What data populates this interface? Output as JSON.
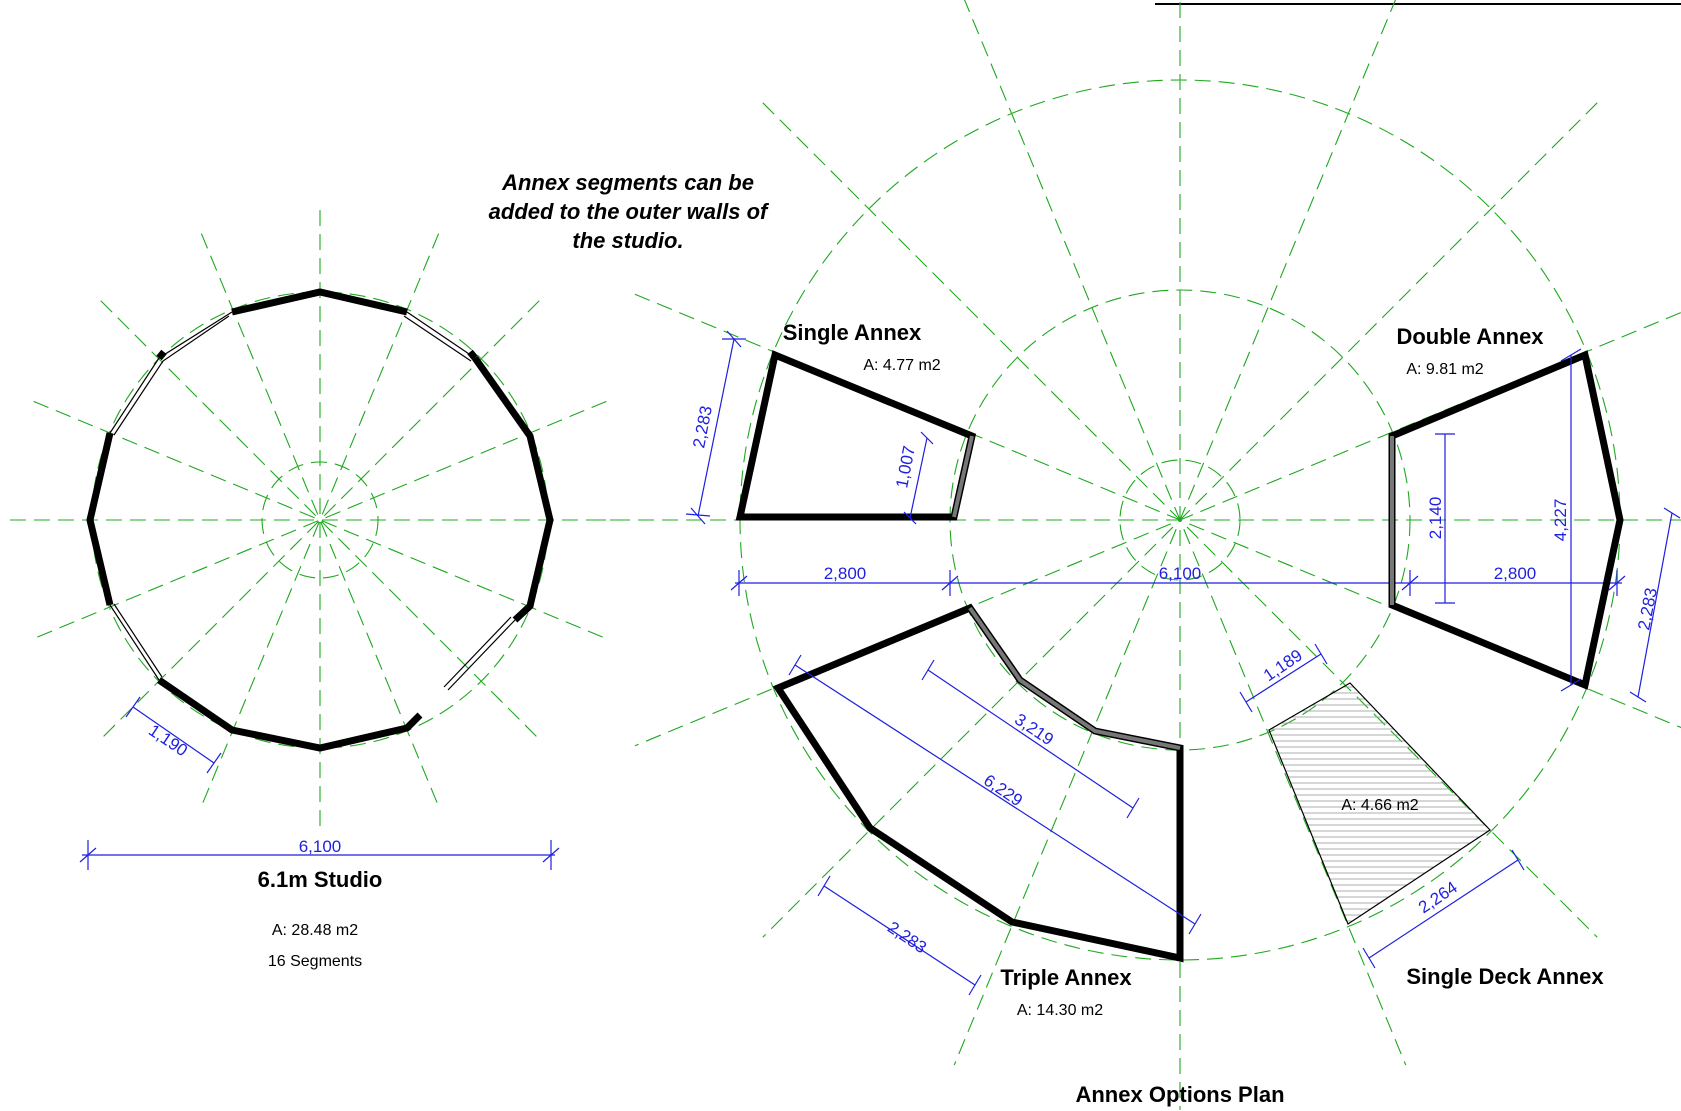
{
  "note": {
    "line1": "Annex segments can be",
    "line2": "added to the outer walls of",
    "line3": "the studio."
  },
  "studio": {
    "title": "6.1m Studio",
    "area": "A: 28.48 m2",
    "segments": "16 Segments",
    "dim_width": "6,100",
    "dim_segment": "1,190"
  },
  "single_annex": {
    "title": "Single Annex",
    "area": "A: 4.77 m2",
    "dim_outer": "2,283",
    "dim_inner": "1,007",
    "dim_depth": "2,800"
  },
  "double_annex": {
    "title": "Double Annex",
    "area": "A: 9.81 m2",
    "dim_inner": "2,140",
    "dim_outer": "4,227",
    "dim_depth": "2,800",
    "dim_side": "2,283"
  },
  "triple_annex": {
    "title": "Triple Annex",
    "area": "A: 14.30 m2",
    "dim_inner": "3,219",
    "dim_outer": "6,229",
    "dim_side": "2,283"
  },
  "deck_annex": {
    "title": "Single Deck Annex",
    "area": "A: 4.66 m2",
    "dim_inner": "1,189",
    "dim_outer": "2,264"
  },
  "plan_center_dim": "6,100",
  "plan_title": "Annex Options Plan",
  "colors": {
    "grid": "#1fa81f",
    "dimension": "#1f1fe0",
    "wall": "#000000"
  }
}
